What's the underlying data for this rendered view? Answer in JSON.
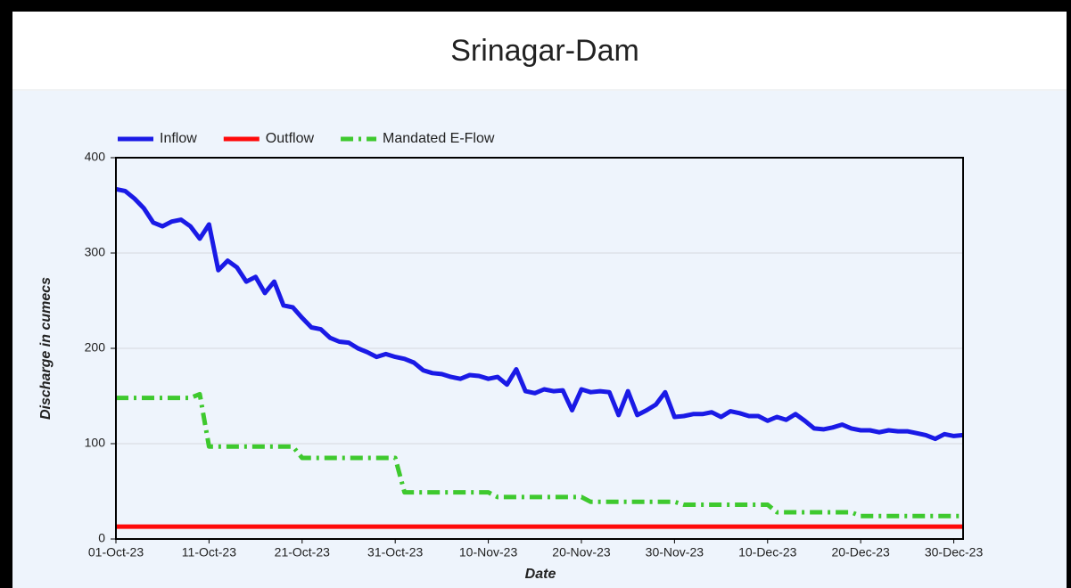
{
  "chart_data": {
    "type": "line",
    "title": "Srinagar-Dam",
    "xlabel": "Date",
    "ylabel": "Discharge in cumecs",
    "x": [
      "01-Oct-23",
      "02-Oct-23",
      "03-Oct-23",
      "04-Oct-23",
      "05-Oct-23",
      "06-Oct-23",
      "07-Oct-23",
      "08-Oct-23",
      "09-Oct-23",
      "10-Oct-23",
      "11-Oct-23",
      "12-Oct-23",
      "13-Oct-23",
      "14-Oct-23",
      "15-Oct-23",
      "16-Oct-23",
      "17-Oct-23",
      "18-Oct-23",
      "19-Oct-23",
      "20-Oct-23",
      "21-Oct-23",
      "22-Oct-23",
      "23-Oct-23",
      "24-Oct-23",
      "25-Oct-23",
      "26-Oct-23",
      "27-Oct-23",
      "28-Oct-23",
      "29-Oct-23",
      "30-Oct-23",
      "31-Oct-23",
      "01-Nov-23",
      "02-Nov-23",
      "03-Nov-23",
      "04-Nov-23",
      "05-Nov-23",
      "06-Nov-23",
      "07-Nov-23",
      "08-Nov-23",
      "09-Nov-23",
      "10-Nov-23",
      "11-Nov-23",
      "12-Nov-23",
      "13-Nov-23",
      "14-Nov-23",
      "15-Nov-23",
      "16-Nov-23",
      "17-Nov-23",
      "18-Nov-23",
      "19-Nov-23",
      "20-Nov-23",
      "21-Nov-23",
      "22-Nov-23",
      "23-Nov-23",
      "24-Nov-23",
      "25-Nov-23",
      "26-Nov-23",
      "27-Nov-23",
      "28-Nov-23",
      "29-Nov-23",
      "30-Nov-23",
      "01-Dec-23",
      "02-Dec-23",
      "03-Dec-23",
      "04-Dec-23",
      "05-Dec-23",
      "06-Dec-23",
      "07-Dec-23",
      "08-Dec-23",
      "09-Dec-23",
      "10-Dec-23",
      "11-Dec-23",
      "12-Dec-23",
      "13-Dec-23",
      "14-Dec-23",
      "15-Dec-23",
      "16-Dec-23",
      "17-Dec-23",
      "18-Dec-23",
      "19-Dec-23",
      "20-Dec-23",
      "21-Dec-23",
      "22-Dec-23",
      "23-Dec-23",
      "24-Dec-23",
      "25-Dec-23",
      "26-Dec-23",
      "27-Dec-23",
      "28-Dec-23",
      "29-Dec-23",
      "30-Dec-23",
      "31-Dec-23"
    ],
    "xticks": [
      "01-Oct-23",
      "11-Oct-23",
      "21-Oct-23",
      "31-Oct-23",
      "10-Nov-23",
      "20-Nov-23",
      "30-Nov-23",
      "10-Dec-23",
      "20-Dec-23",
      "30-Dec-23"
    ],
    "ylim": [
      0,
      400
    ],
    "yticks": [
      0,
      100,
      200,
      300,
      400
    ],
    "grid": true,
    "legend": "top-left",
    "series": [
      {
        "name": "Inflow",
        "color": "#1a1ae6",
        "style": "solid",
        "values": [
          367,
          365,
          357,
          347,
          332,
          328,
          333,
          335,
          328,
          315,
          330,
          282,
          292,
          285,
          270,
          275,
          258,
          270,
          245,
          243,
          232,
          222,
          220,
          211,
          207,
          206,
          200,
          196,
          191,
          194,
          191,
          189,
          185,
          177,
          174,
          173,
          170,
          168,
          172,
          171,
          168,
          170,
          162,
          178,
          155,
          153,
          157,
          155,
          156,
          135,
          157,
          154,
          155,
          154,
          130,
          155,
          130,
          135,
          141,
          154,
          128,
          129,
          131,
          131,
          133,
          128,
          134,
          132,
          129,
          129,
          124,
          128,
          125,
          131,
          124,
          116,
          115,
          117,
          120,
          116,
          114,
          114,
          112,
          114,
          113,
          113,
          111,
          109,
          105,
          110,
          108,
          109
        ]
      },
      {
        "name": "Outflow",
        "color": "#ff0a0a",
        "style": "solid",
        "values": [
          13,
          13,
          13,
          13,
          13,
          13,
          13,
          13,
          13,
          13,
          13,
          13,
          13,
          13,
          13,
          13,
          13,
          13,
          13,
          13,
          13,
          13,
          13,
          13,
          13,
          13,
          13,
          13,
          13,
          13,
          13,
          13,
          13,
          13,
          13,
          13,
          13,
          13,
          13,
          13,
          13,
          13,
          13,
          13,
          13,
          13,
          13,
          13,
          13,
          13,
          13,
          13,
          13,
          13,
          13,
          13,
          13,
          13,
          13,
          13,
          13,
          13,
          13,
          13,
          13,
          13,
          13,
          13,
          13,
          13,
          13,
          13,
          13,
          13,
          13,
          13,
          13,
          13,
          13,
          13,
          13,
          13,
          13,
          13,
          13,
          13,
          13,
          13,
          13,
          13,
          13,
          13
        ]
      },
      {
        "name": "Mandated E-Flow",
        "color": "#3ec92e",
        "style": "dash-dot",
        "values": [
          148,
          148,
          148,
          148,
          148,
          148,
          148,
          148,
          148,
          152,
          97,
          97,
          97,
          97,
          97,
          97,
          97,
          97,
          97,
          97,
          85,
          85,
          85,
          85,
          85,
          85,
          85,
          85,
          85,
          85,
          85,
          49,
          49,
          49,
          49,
          49,
          49,
          49,
          49,
          49,
          49,
          44,
          44,
          44,
          44,
          44,
          44,
          44,
          44,
          44,
          44,
          39,
          39,
          39,
          39,
          39,
          39,
          39,
          39,
          39,
          39,
          36,
          36,
          36,
          36,
          36,
          36,
          36,
          36,
          36,
          36,
          28,
          28,
          28,
          28,
          28,
          28,
          28,
          28,
          28,
          24,
          24,
          24,
          24,
          24,
          24,
          24,
          24,
          24,
          24,
          24,
          24
        ]
      }
    ]
  }
}
